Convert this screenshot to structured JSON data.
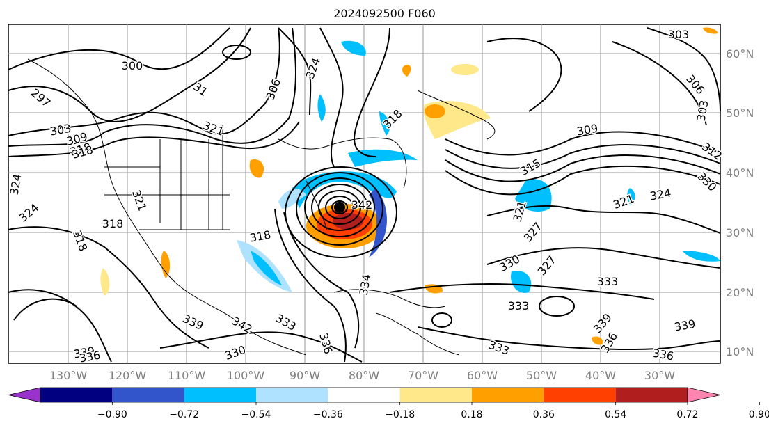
{
  "title": "2024092500 F060",
  "map": {
    "lon_labels": [
      "130°W",
      "120°W",
      "110°W",
      "100°W",
      "90°W",
      "80°W",
      "70°W",
      "60°W",
      "50°W",
      "40°W",
      "30°W"
    ],
    "lat_labels": [
      "60°N",
      "50°N",
      "40°N",
      "30°N",
      "20°N",
      "10°N"
    ],
    "contour_labels": [
      "300",
      "297",
      "303",
      "309",
      "318",
      "318",
      "324",
      "324",
      "318",
      "31",
      "306",
      "324",
      "321",
      "321",
      "318",
      "318",
      "342",
      "339",
      "342",
      "333",
      "336",
      "330",
      "339",
      "336",
      "333",
      "334",
      "318",
      "315",
      "309",
      "303",
      "306",
      "303",
      "312",
      "330",
      "321",
      "324",
      "321",
      "327",
      "330",
      "327",
      "333",
      "339",
      "336",
      "339",
      "336",
      "333"
    ],
    "storm_marker": "storm-center"
  },
  "colorbar": {
    "labels": [
      "−0.90",
      "−0.72",
      "−0.54",
      "−0.36",
      "−0.18",
      "0.18",
      "0.36",
      "0.54",
      "0.72",
      "0.90"
    ],
    "colors": [
      "#9933cc",
      "#000080",
      "#3355cc",
      "#00bfff",
      "#aee2ff",
      "#ffffff",
      "#ffe88a",
      "#ffa000",
      "#ff4000",
      "#b01e1e",
      "#ff85b0"
    ]
  }
}
